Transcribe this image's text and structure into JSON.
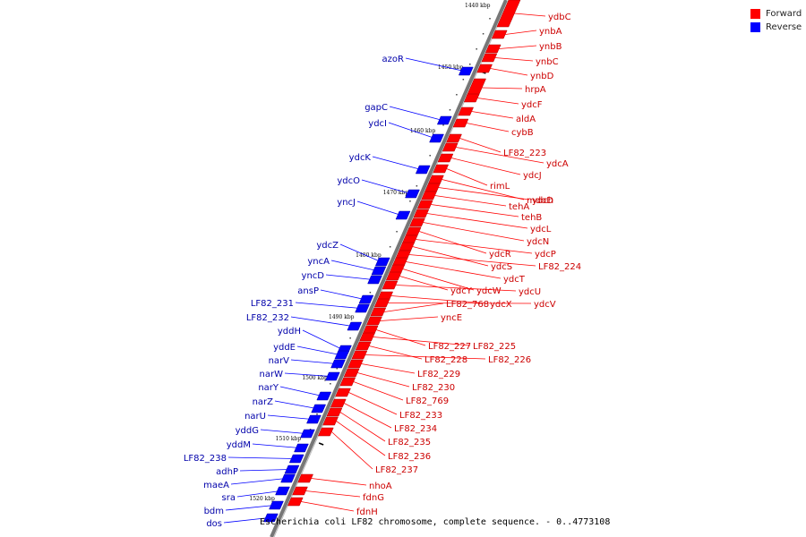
{
  "legend": {
    "forward_label": "Forward",
    "reverse_label": "Reverse",
    "forward_color": "#ff0000",
    "reverse_color": "#0000ff"
  },
  "caption": "Escherichia coli LF82 chromosome, complete sequence. - 0..4773108",
  "ticks": [
    "1440 kbp",
    "1450 kbp",
    "1460 kbp",
    "1470 kbp",
    "1480 kbp",
    "1490 kbp",
    "1500 kbp",
    "1510 kbp",
    "1520 kbp"
  ],
  "forward_genes": [
    "ydbC",
    "ynbA",
    "ynbB",
    "ynbC",
    "ynbD",
    "hrpA",
    "ydcF",
    "aldA",
    "cybB",
    "LF82_223",
    "ydcA",
    "ydcJ",
    "rimL",
    "mdoD",
    "ydch",
    "tehA",
    "tehB",
    "ydcL",
    "ydcN",
    "ydcR",
    "ydcP",
    "ydcS",
    "LF82_224",
    "ydcT",
    "ydcW",
    "ydcY",
    "ydcU",
    "ydcX",
    "ydcV",
    "LF82_768",
    "yncE",
    "LF82_227",
    "LF82_225",
    "LF82_228",
    "LF82_226",
    "LF82_229",
    "LF82_230",
    "LF82_769",
    "LF82_233",
    "LF82_234",
    "LF82_235",
    "LF82_236",
    "LF82_237",
    "nhoA",
    "fdnG",
    "fdnH"
  ],
  "reverse_genes": [
    "azoR",
    "gapC",
    "ydcI",
    "ydcK",
    "ydcO",
    "yncJ",
    "ydcZ",
    "yncA",
    "yncD",
    "ansP",
    "LF82_231",
    "LF82_232",
    "yddH",
    "yddE",
    "narV",
    "narW",
    "narY",
    "narZ",
    "narU",
    "yddG",
    "yddM",
    "LF82_238",
    "adhP",
    "maeA",
    "sra",
    "bdm",
    "dos"
  ]
}
